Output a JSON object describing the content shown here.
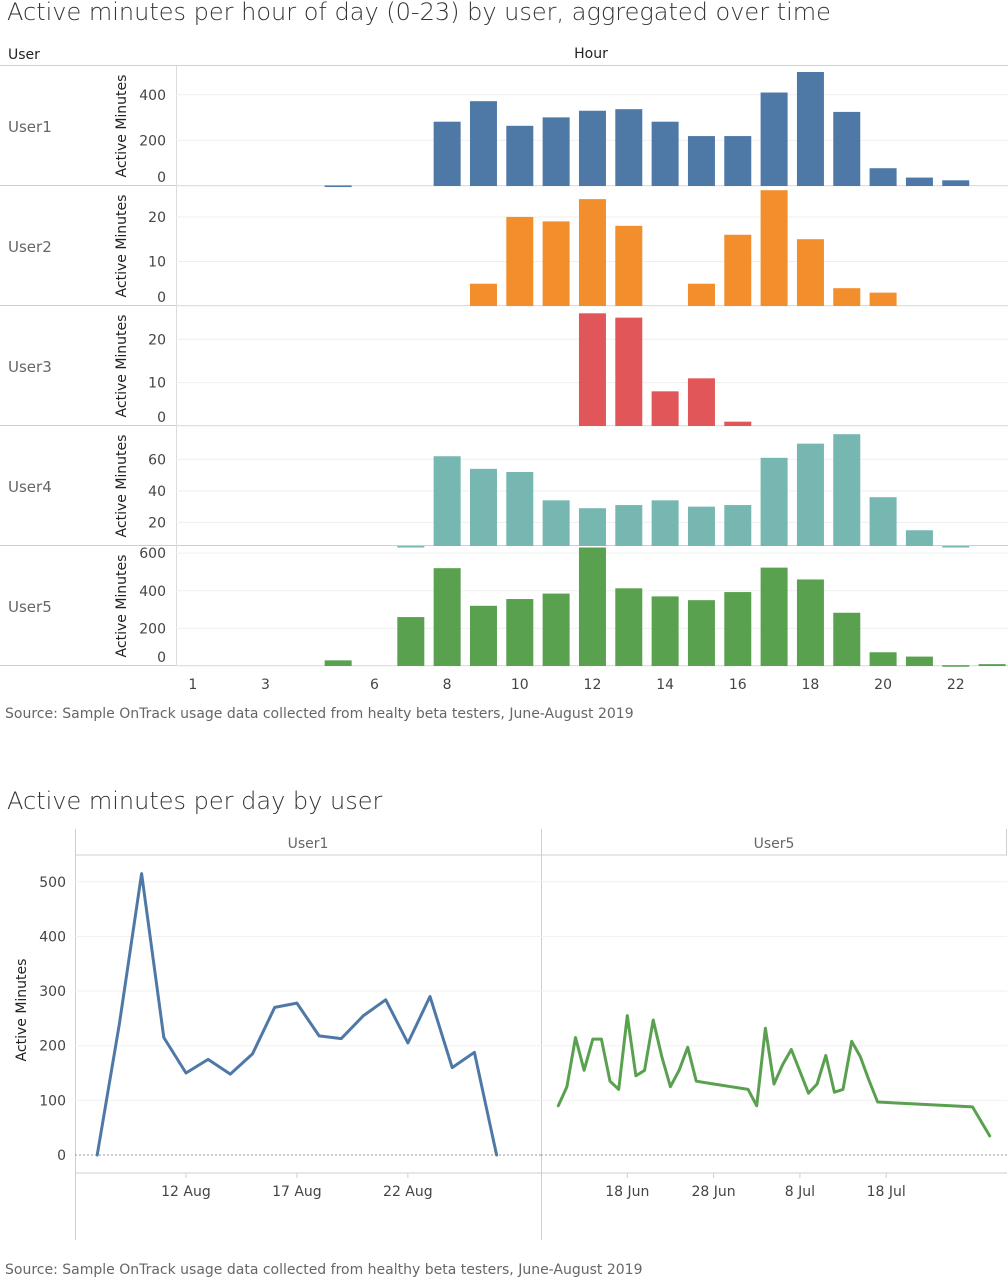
{
  "top": {
    "title": "Active minutes per hour of day (0-23) by user, aggregated over time",
    "source": "Source: Sample OnTrack usage data collected from healty beta testers, June-August 2019"
  },
  "bottom": {
    "title": "Active minutes per day by user",
    "source": "Source: Sample OnTrack usage data collected from healthy beta testers, June-August 2019"
  },
  "chart_data": [
    {
      "type": "bar",
      "title": "Active minutes per hour of day (0-23) by user, aggregated over time",
      "row_header": "User",
      "column_header": "Hour",
      "ylabel": "Active Minutes",
      "x_tick_labels": [
        "1",
        "3",
        "6",
        "8",
        "10",
        "12",
        "14",
        "16",
        "18",
        "20",
        "22"
      ],
      "colors": {
        "User1": "#4e79a7",
        "User2": "#f28e2b",
        "User3": "#e15759",
        "User4": "#76b7b2",
        "User5": "#59a14f"
      },
      "panels": [
        {
          "user": "User1",
          "yticks": [
            0,
            200,
            400
          ],
          "ymin": 0,
          "ymax": 500,
          "values": [
            [
              5,
              2
            ],
            [
              8,
              282
            ],
            [
              9,
              372
            ],
            [
              10,
              264
            ],
            [
              11,
              301
            ],
            [
              12,
              330
            ],
            [
              13,
              337
            ],
            [
              14,
              282
            ],
            [
              15,
              219
            ],
            [
              16,
              219
            ],
            [
              17,
              410
            ],
            [
              18,
              500
            ],
            [
              19,
              325
            ],
            [
              20,
              78
            ],
            [
              21,
              37
            ],
            [
              22,
              25
            ]
          ]
        },
        {
          "user": "User2",
          "yticks": [
            0,
            10,
            20
          ],
          "ymin": 0,
          "ymax": 25.6,
          "values": [
            [
              9,
              5
            ],
            [
              10,
              20
            ],
            [
              11,
              19
            ],
            [
              12,
              24
            ],
            [
              13,
              18
            ],
            [
              15,
              5
            ],
            [
              16,
              16
            ],
            [
              17,
              26
            ],
            [
              18,
              15
            ],
            [
              19,
              4
            ],
            [
              20,
              3
            ]
          ]
        },
        {
          "user": "User3",
          "yticks": [
            0,
            10,
            20
          ],
          "ymin": 0,
          "ymax": 26.3,
          "values": [
            [
              12,
              26
            ],
            [
              13,
              25
            ],
            [
              14,
              8
            ],
            [
              15,
              11
            ],
            [
              16,
              1
            ]
          ]
        },
        {
          "user": "User4",
          "yticks": [
            20,
            40,
            60
          ],
          "ymin": 5,
          "ymax": 77.4,
          "values": [
            [
              7,
              5
            ],
            [
              8,
              62
            ],
            [
              9,
              54
            ],
            [
              10,
              52
            ],
            [
              11,
              34
            ],
            [
              12,
              29
            ],
            [
              13,
              31
            ],
            [
              14,
              34
            ],
            [
              15,
              30
            ],
            [
              16,
              31
            ],
            [
              17,
              61
            ],
            [
              18,
              70
            ],
            [
              19,
              76
            ],
            [
              20,
              36
            ],
            [
              21,
              15
            ],
            [
              22,
              5
            ]
          ]
        },
        {
          "user": "User5",
          "yticks": [
            0,
            200,
            400,
            600
          ],
          "ymin": 0,
          "ymax": 606,
          "values": [
            [
              5,
              30
            ],
            [
              7,
              260
            ],
            [
              8,
              520
            ],
            [
              9,
              320
            ],
            [
              10,
              356
            ],
            [
              11,
              385
            ],
            [
              12,
              630
            ],
            [
              13,
              413
            ],
            [
              14,
              370
            ],
            [
              15,
              350
            ],
            [
              16,
              393
            ],
            [
              17,
              523
            ],
            [
              18,
              460
            ],
            [
              19,
              283
            ],
            [
              20,
              73
            ],
            [
              21,
              50
            ],
            [
              22,
              4
            ],
            [
              23,
              10
            ]
          ]
        }
      ]
    },
    {
      "type": "line",
      "title": "Active minutes per day by user",
      "ylabel": "Active Minutes",
      "yticks": [
        0,
        100,
        200,
        300,
        400,
        500
      ],
      "ylim": [
        0,
        530
      ],
      "panels": [
        {
          "name": "User1",
          "color": "#4e79a7",
          "x_tick_labels": [
            "12 Aug",
            "17 Aug",
            "22 Aug"
          ],
          "x_ticks": [
            "2019-08-12",
            "2019-08-17",
            "2019-08-22"
          ],
          "xlim": [
            "2019-08-07",
            "2019-08-28"
          ],
          "points": [
            [
              "2019-08-08",
              0
            ],
            [
              "2019-08-09",
              240
            ],
            [
              "2019-08-10",
              515
            ],
            [
              "2019-08-11",
              215
            ],
            [
              "2019-08-12",
              150
            ],
            [
              "2019-08-13",
              175
            ],
            [
              "2019-08-14",
              148
            ],
            [
              "2019-08-15",
              185
            ],
            [
              "2019-08-16",
              270
            ],
            [
              "2019-08-17",
              278
            ],
            [
              "2019-08-18",
              218
            ],
            [
              "2019-08-19",
              213
            ],
            [
              "2019-08-20",
              255
            ],
            [
              "2019-08-21",
              284
            ],
            [
              "2019-08-22",
              205
            ],
            [
              "2019-08-23",
              290
            ],
            [
              "2019-08-24",
              160
            ],
            [
              "2019-08-25",
              188
            ],
            [
              "2019-08-26",
              0
            ]
          ]
        },
        {
          "name": "User5",
          "color": "#59a14f",
          "x_tick_labels": [
            "18 Jun",
            "28 Jun",
            "8 Jul",
            "18 Jul"
          ],
          "x_ticks": [
            "2019-06-18",
            "2019-06-28",
            "2019-07-08",
            "2019-07-18"
          ],
          "xlim": [
            "2019-06-08",
            "2019-08-01"
          ],
          "points": [
            [
              "2019-06-10",
              90
            ],
            [
              "2019-06-11",
              125
            ],
            [
              "2019-06-12",
              215
            ],
            [
              "2019-06-13",
              155
            ],
            [
              "2019-06-14",
              212
            ],
            [
              "2019-06-15",
              212
            ],
            [
              "2019-06-16",
              135
            ],
            [
              "2019-06-17",
              120
            ],
            [
              "2019-06-18",
              255
            ],
            [
              "2019-06-19",
              145
            ],
            [
              "2019-06-20",
              155
            ],
            [
              "2019-06-21",
              247
            ],
            [
              "2019-06-22",
              180
            ],
            [
              "2019-06-23",
              125
            ],
            [
              "2019-06-24",
              155
            ],
            [
              "2019-06-25",
              197
            ],
            [
              "2019-06-26",
              135
            ],
            [
              "2019-06-28",
              130
            ],
            [
              "2019-06-30",
              125
            ],
            [
              "2019-07-02",
              120
            ],
            [
              "2019-07-03",
              90
            ],
            [
              "2019-07-04",
              232
            ],
            [
              "2019-07-05",
              130
            ],
            [
              "2019-07-06",
              165
            ],
            [
              "2019-07-07",
              193
            ],
            [
              "2019-07-09",
              113
            ],
            [
              "2019-07-10",
              130
            ],
            [
              "2019-07-11",
              182
            ],
            [
              "2019-07-12",
              115
            ],
            [
              "2019-07-13",
              120
            ],
            [
              "2019-07-14",
              208
            ],
            [
              "2019-07-15",
              180
            ],
            [
              "2019-07-16",
              137
            ],
            [
              "2019-07-17",
              97
            ],
            [
              "2019-07-28",
              88
            ],
            [
              "2019-07-30",
              35
            ]
          ]
        }
      ]
    }
  ]
}
